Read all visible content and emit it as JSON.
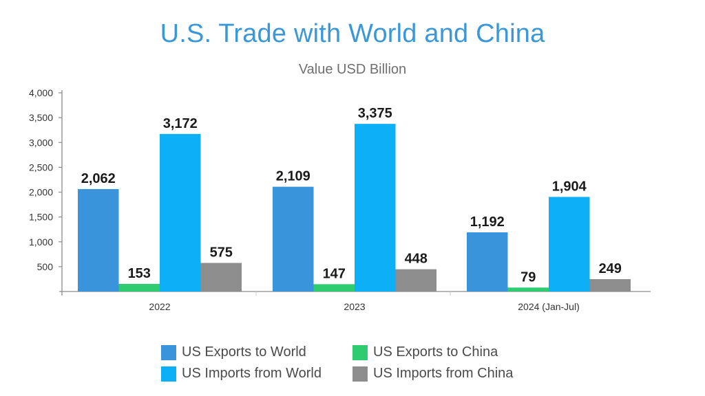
{
  "title": "U.S. Trade with World and China",
  "subtitle": "Value USD Billion",
  "chart_data": {
    "type": "bar",
    "title": "U.S. Trade with World and China",
    "subtitle": "Value USD Billion",
    "xlabel": "",
    "ylabel": "",
    "categories": [
      "2022",
      "2023",
      "2024 (Jan-Jul)"
    ],
    "series": [
      {
        "name": "US Exports to World",
        "color": "#3a94db",
        "values": [
          2062,
          2109,
          1192
        ],
        "labels": [
          "2,062",
          "2,109",
          "1,192"
        ]
      },
      {
        "name": "US Exports to China",
        "color": "#2ecb71",
        "values": [
          153,
          147,
          79
        ],
        "labels": [
          "153",
          "147",
          "79"
        ]
      },
      {
        "name": "US Imports from World",
        "color": "#0db0f7",
        "values": [
          3172,
          3375,
          1904
        ],
        "labels": [
          "3,172",
          "3,375",
          "1,904"
        ]
      },
      {
        "name": "US Imports from China",
        "color": "#8d8d8d",
        "values": [
          575,
          448,
          249
        ],
        "labels": [
          "575",
          "448",
          "249"
        ]
      }
    ],
    "ylim": [
      0,
      4000
    ],
    "yticks": [
      500,
      1000,
      1500,
      2000,
      2500,
      3000,
      3500,
      4000
    ],
    "ytick_labels": [
      "500",
      "1,000",
      "1,500",
      "2,000",
      "2,500",
      "3,000",
      "3,500",
      "4,000"
    ],
    "grid": false,
    "legend": "bottom"
  },
  "legend_items": [
    {
      "label": "US Exports to World",
      "color": "#3a94db"
    },
    {
      "label": "US Exports to China",
      "color": "#2ecb71"
    },
    {
      "label": "US Imports from World",
      "color": "#0db0f7"
    },
    {
      "label": "US Imports from China",
      "color": "#8d8d8d"
    }
  ]
}
